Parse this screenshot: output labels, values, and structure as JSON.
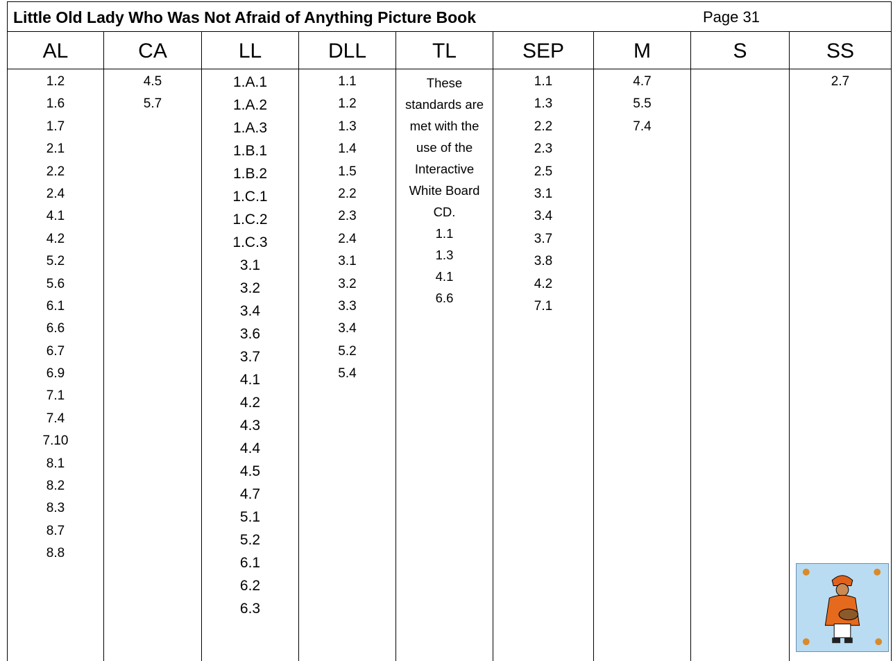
{
  "header": {
    "title": "Little Old Lady Who Was Not Afraid of Anything Picture Book",
    "page": "Page 31"
  },
  "table": {
    "columns": [
      {
        "header": "AL",
        "items": [
          "1.2",
          "1.6",
          "1.7",
          "2.1",
          "2.2",
          "2.4",
          "4.1",
          "4.2",
          "5.2",
          "5.6",
          "6.1",
          "6.6",
          "6.7",
          "6.9",
          "7.1",
          "7.4",
          "7.10",
          "8.1",
          "8.2",
          "8.3",
          "8.7",
          "8.8"
        ]
      },
      {
        "header": "CA",
        "items": [
          "4.5",
          "5.7"
        ]
      },
      {
        "header": "LL",
        "items": [
          "1.A.1",
          "1.A.2",
          "1.A.3",
          "1.B.1",
          "1.B.2",
          "1.C.1",
          "1.C.2",
          "1.C.3",
          "3.1",
          "3.2",
          "3.4",
          "3.6",
          "3.7",
          "4.1",
          "4.2",
          "4.3",
          "4.4",
          "4.5",
          "4.7",
          "5.1",
          "5.2",
          "6.1",
          "6.2",
          "6.3"
        ]
      },
      {
        "header": "DLL",
        "items": [
          "1.1",
          "1.2",
          "1.3",
          "1.4",
          "1.5",
          "2.2",
          "2.3",
          "2.4",
          "3.1",
          "3.2",
          "3.3",
          "3.4",
          "5.2",
          "5.4"
        ]
      },
      {
        "header": "TL",
        "note": "These standards are met with the use of the Interactive White Board CD.",
        "items": [
          "1.1",
          "1.3",
          "4.1",
          "6.6"
        ]
      },
      {
        "header": "SEP",
        "items": [
          "1.1",
          "1.3",
          "2.2",
          "2.3",
          "2.5",
          "3.1",
          "3.4",
          "3.7",
          "3.8",
          "4.2",
          "7.1"
        ]
      },
      {
        "header": "M",
        "items": [
          "4.7",
          "5.5",
          "7.4"
        ]
      },
      {
        "header": "S",
        "items": []
      },
      {
        "header": "SS",
        "items": [
          "2.7"
        ]
      }
    ]
  }
}
